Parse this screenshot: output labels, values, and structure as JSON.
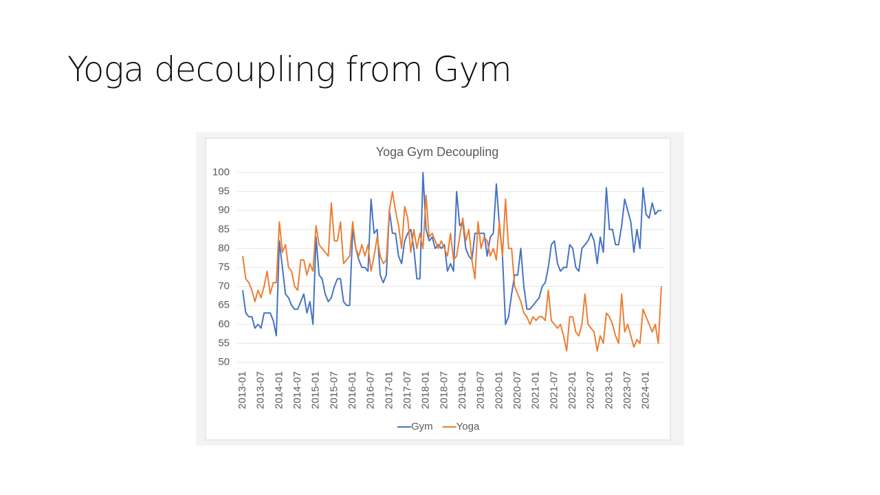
{
  "slide": {
    "title": "Yoga decoupling from Gym"
  },
  "chart_data": {
    "type": "line",
    "title": "Yoga Gym Decoupling",
    "categories": [
      "2013-01",
      null,
      null,
      null,
      null,
      null,
      "2013-07",
      null,
      null,
      null,
      null,
      null,
      "2014-01",
      null,
      null,
      null,
      null,
      null,
      "2014-07",
      null,
      null,
      null,
      null,
      null,
      "2015-01",
      null,
      null,
      null,
      null,
      null,
      "2015-07",
      null,
      null,
      null,
      null,
      null,
      "2016-01",
      null,
      null,
      null,
      null,
      null,
      "2016-07",
      null,
      null,
      null,
      null,
      null,
      "2017-01",
      null,
      null,
      null,
      null,
      null,
      "2017-07",
      null,
      null,
      null,
      null,
      null,
      "2018-01",
      null,
      null,
      null,
      null,
      null,
      "2018-07",
      null,
      null,
      null,
      null,
      null,
      "2019-01",
      null,
      null,
      null,
      null,
      null,
      "2019-07",
      null,
      null,
      null,
      null,
      null,
      "2020-01",
      null,
      null,
      null,
      null,
      null,
      "2020-07",
      null,
      null,
      null,
      null,
      null,
      "2021-01",
      null,
      null,
      null,
      null,
      null,
      "2021-07",
      null,
      null,
      null,
      null,
      null,
      "2022-01",
      null,
      null,
      null,
      null,
      null,
      "2022-07",
      null,
      null,
      null,
      null,
      null,
      "2023-01",
      null,
      null,
      null,
      null,
      null,
      "2023-07",
      null,
      null,
      null,
      null,
      null,
      "2024-01",
      null,
      null,
      null,
      null,
      null
    ],
    "series": [
      {
        "name": "Gym",
        "color": "#4472c4",
        "values": [
          69,
          63,
          62,
          62,
          59,
          60,
          59,
          63,
          63,
          63,
          61,
          57,
          82,
          75,
          68,
          67,
          65,
          64,
          64,
          66,
          68,
          63,
          66,
          60,
          83,
          73,
          72,
          68,
          66,
          67,
          70,
          72,
          72,
          66,
          65,
          65,
          85,
          80,
          77,
          75,
          75,
          74,
          93,
          84,
          85,
          73,
          71,
          73,
          90,
          84,
          84,
          78,
          76,
          82,
          84,
          85,
          80,
          72,
          72,
          100,
          85,
          82,
          83,
          80,
          81,
          80,
          81,
          74,
          76,
          74,
          95,
          86,
          87,
          80,
          78,
          77,
          84,
          84,
          84,
          84,
          78,
          83,
          84,
          97,
          86,
          78,
          60,
          62,
          68,
          73,
          73,
          80,
          70,
          64,
          64,
          65,
          66,
          67,
          70,
          71,
          75,
          81,
          82,
          76,
          74,
          75,
          75,
          81,
          80,
          75,
          74,
          80,
          81,
          82,
          84,
          82,
          76,
          83,
          79,
          96,
          85,
          85,
          81,
          81,
          86,
          93,
          90,
          87,
          79,
          85,
          80,
          96,
          89,
          88,
          92,
          89,
          90,
          90
        ]
      },
      {
        "name": "Yoga",
        "color": "#ed7d31",
        "values": [
          78,
          72,
          71,
          69,
          66,
          69,
          67,
          70,
          74,
          68,
          71,
          71,
          87,
          79,
          81,
          75,
          74,
          70,
          69,
          77,
          77,
          73,
          76,
          74,
          86,
          81,
          80,
          79,
          78,
          92,
          82,
          82,
          87,
          76,
          77,
          78,
          87,
          80,
          78,
          81,
          78,
          81,
          74,
          78,
          83,
          78,
          76,
          77,
          90,
          95,
          90,
          86,
          80,
          91,
          88,
          79,
          85,
          80,
          84,
          80,
          94,
          83,
          84,
          82,
          80,
          82,
          80,
          78,
          84,
          77,
          78,
          83,
          88,
          82,
          85,
          77,
          72,
          87,
          80,
          83,
          82,
          78,
          80,
          77,
          87,
          78,
          93,
          80,
          80,
          70,
          68,
          66,
          63,
          62,
          60,
          62,
          61,
          62,
          62,
          61,
          69,
          61,
          60,
          59,
          60,
          57,
          53,
          62,
          62,
          58,
          57,
          60,
          68,
          60,
          59,
          58,
          53,
          57,
          55,
          63,
          62,
          60,
          57,
          55,
          68,
          58,
          60,
          57,
          54,
          56,
          55,
          64,
          62,
          60,
          58,
          60,
          55,
          70
        ]
      }
    ],
    "ylim": [
      50,
      100
    ],
    "yticks": [
      50,
      55,
      60,
      65,
      70,
      75,
      80,
      85,
      90,
      95,
      100
    ],
    "grid": true,
    "legend": "bottom"
  }
}
